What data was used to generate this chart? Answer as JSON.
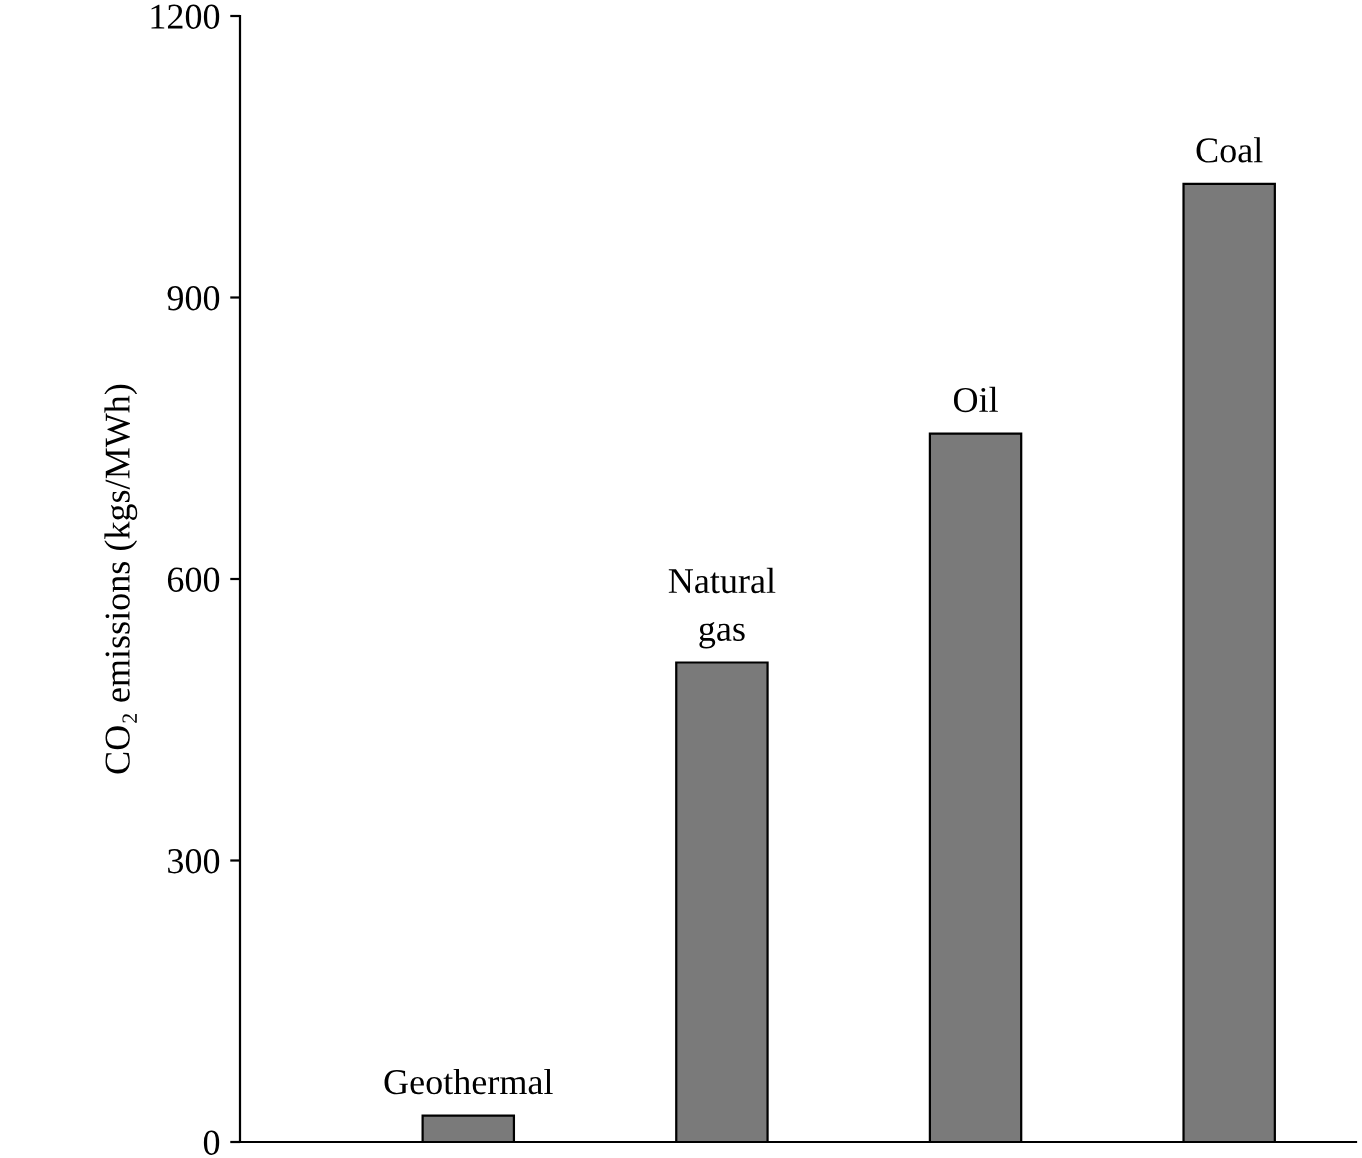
{
  "chart_data": {
    "type": "bar",
    "ylabel": "CO₂ emissions (kgs/MWh)",
    "categories": [
      "Geothermal",
      "Natural gas",
      "Oil",
      "Coal"
    ],
    "values": [
      28,
      511,
      755,
      1021
    ],
    "color": "#7a7a7a",
    "ylim": [
      0,
      1200
    ],
    "yticks": [
      0,
      300,
      600,
      900,
      1200
    ],
    "grid": false,
    "tick_labels": "y"
  }
}
